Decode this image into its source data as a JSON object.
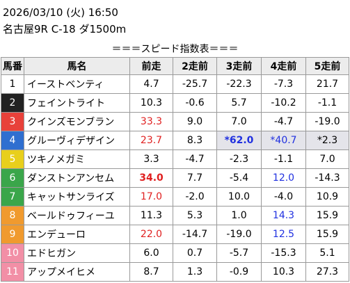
{
  "header": {
    "datetime": "2026/03/10 (火) 16:50",
    "race": "名古屋9R C-18 ダ1500m"
  },
  "table": {
    "title": "＝＝＝スピード指数表＝＝＝",
    "columns": [
      "馬番",
      "馬名",
      "前走",
      "2走前",
      "3走前",
      "4走前",
      "5走前"
    ],
    "rows": [
      {
        "number": "1",
        "name": "イーストベンティ",
        "speeds": [
          "4.7",
          "-25.7",
          "-22.3",
          "-7.3",
          "21.7"
        ],
        "frame_color": "#ffffff",
        "number_color": "#000000"
      },
      {
        "number": "2",
        "name": "フェイントライト",
        "speeds": [
          "10.3",
          "-0.6",
          "5.7",
          "-10.2",
          "-1.1"
        ],
        "frame_color": "#222222",
        "number_color": "#ffffff"
      },
      {
        "number": "3",
        "name": "クインズモンブラン",
        "speeds": [
          "33.3",
          "9.0",
          "7.0",
          "-4.7",
          "-19.0"
        ],
        "frame_color": "#e8413a",
        "number_color": "#ffffff"
      },
      {
        "number": "4",
        "name": "グルーヴィデザイン",
        "speeds": [
          "23.7",
          "8.3",
          "*62.0",
          "*40.7",
          "*2.3"
        ],
        "frame_color": "#2f6fd0",
        "number_color": "#ffffff"
      },
      {
        "number": "5",
        "name": "ツキノメガミ",
        "speeds": [
          "3.3",
          "-4.7",
          "-2.3",
          "-1.1",
          "7.0"
        ],
        "frame_color": "#e8cf1c",
        "number_color": "#ffffff"
      },
      {
        "number": "6",
        "name": "ダンストンアンセム",
        "speeds": [
          "34.0",
          "7.7",
          "-5.4",
          "12.0",
          "-14.3"
        ],
        "frame_color": "#3aa64a",
        "number_color": "#ffffff"
      },
      {
        "number": "7",
        "name": "キャットサンライズ",
        "speeds": [
          "17.0",
          "-2.0",
          "10.0",
          "-4.0",
          "10.9"
        ],
        "frame_color": "#3aa64a",
        "number_color": "#ffffff"
      },
      {
        "number": "8",
        "name": "ベールドゥフィーユ",
        "speeds": [
          "11.3",
          "5.3",
          "1.0",
          "14.3",
          "15.9"
        ],
        "frame_color": "#f09a2e",
        "number_color": "#ffffff"
      },
      {
        "number": "9",
        "name": "エンデューロ",
        "speeds": [
          "22.0",
          "-14.7",
          "-19.0",
          "12.5",
          "15.9"
        ],
        "frame_color": "#f09a2e",
        "number_color": "#ffffff"
      },
      {
        "number": "10",
        "name": "エドヒガン",
        "speeds": [
          "6.0",
          "0.7",
          "-5.7",
          "-15.3",
          "5.1"
        ],
        "frame_color": "#f28fa6",
        "number_color": "#ffffff"
      },
      {
        "number": "11",
        "name": "アップメイヒメ",
        "speeds": [
          "8.7",
          "1.3",
          "-0.9",
          "10.3",
          "27.3"
        ],
        "frame_color": "#f28fa6",
        "number_color": "#ffffff"
      }
    ],
    "highlights": [
      {
        "row": 2,
        "column": 0,
        "color": "#e02020"
      },
      {
        "row": 3,
        "column": 0,
        "color": "#e02020"
      },
      {
        "row": 3,
        "column": 2,
        "color": "#2030e0",
        "bold": true,
        "background": "#e4e4ea"
      },
      {
        "row": 3,
        "column": 3,
        "color": "#2030e0",
        "background": "#e4e4ea"
      },
      {
        "row": 3,
        "column": 4,
        "color": "#000000",
        "background": "#e4e4ea"
      },
      {
        "row": 5,
        "column": 0,
        "color": "#e02020",
        "bold": true
      },
      {
        "row": 5,
        "column": 3,
        "color": "#2030e0"
      },
      {
        "row": 6,
        "column": 0,
        "color": "#e02020"
      },
      {
        "row": 7,
        "column": 3,
        "color": "#2030e0"
      },
      {
        "row": 8,
        "column": 0,
        "color": "#e02020"
      },
      {
        "row": 8,
        "column": 3,
        "color": "#2030e0"
      }
    ]
  }
}
